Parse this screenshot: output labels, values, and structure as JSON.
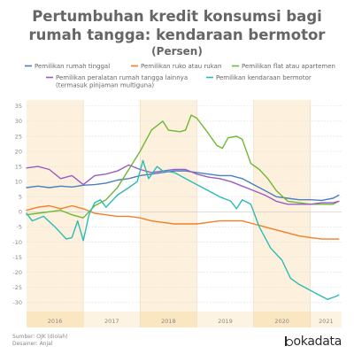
{
  "chart_data": {
    "type": "line",
    "title_lines": [
      "Pertumbuhan kredit konsumsi bagi",
      "rumah tangga: kendaraan bermotor"
    ],
    "subtitle": "(Persen)",
    "xlabel": "",
    "ylabel": "",
    "ylim": [
      -33,
      37
    ],
    "yticks": [
      -30,
      -25,
      -20,
      -15,
      -10,
      -5,
      0,
      5,
      10,
      15,
      20,
      25,
      30,
      35
    ],
    "xlim": [
      2015.5,
      2021.05
    ],
    "year_bands": [
      {
        "label": "2016",
        "start": 2015.5,
        "end": 2016.5
      },
      {
        "label": "2017",
        "start": 2016.5,
        "end": 2017.5
      },
      {
        "label": "2018",
        "start": 2017.5,
        "end": 2018.5
      },
      {
        "label": "2019",
        "start": 2018.5,
        "end": 2019.5
      },
      {
        "label": "2020",
        "start": 2019.5,
        "end": 2020.5
      },
      {
        "label": "2021",
        "start": 2020.5,
        "end": 2021.05
      }
    ],
    "grid": true,
    "legend_position": "top",
    "series": [
      {
        "name": "Pemilikan rumah tinggal",
        "color": "#4a7fc1",
        "points": [
          [
            2015.5,
            8
          ],
          [
            2015.7,
            8.5
          ],
          [
            2015.9,
            8
          ],
          [
            2016.1,
            8.5
          ],
          [
            2016.3,
            8.2
          ],
          [
            2016.5,
            8.8
          ],
          [
            2016.7,
            9
          ],
          [
            2016.9,
            9.5
          ],
          [
            2017.1,
            10.5
          ],
          [
            2017.3,
            11
          ],
          [
            2017.5,
            12
          ],
          [
            2017.7,
            12.5
          ],
          [
            2017.9,
            13
          ],
          [
            2018.1,
            13.5
          ],
          [
            2018.3,
            13.5
          ],
          [
            2018.5,
            13
          ],
          [
            2018.7,
            12.5
          ],
          [
            2018.9,
            12
          ],
          [
            2019.1,
            12
          ],
          [
            2019.3,
            11
          ],
          [
            2019.5,
            9
          ],
          [
            2019.7,
            7
          ],
          [
            2019.9,
            5
          ],
          [
            2020.1,
            4.5
          ],
          [
            2020.3,
            4
          ],
          [
            2020.5,
            4
          ],
          [
            2020.7,
            3.8
          ],
          [
            2020.9,
            4.5
          ],
          [
            2021.0,
            5.5
          ]
        ]
      },
      {
        "name": "Pemilikan ruko atau rukan",
        "color": "#f07f2a",
        "points": [
          [
            2015.5,
            0.5
          ],
          [
            2015.7,
            1.5
          ],
          [
            2015.9,
            2
          ],
          [
            2016.1,
            1
          ],
          [
            2016.3,
            2
          ],
          [
            2016.5,
            1
          ],
          [
            2016.7,
            -0.5
          ],
          [
            2016.9,
            -1
          ],
          [
            2017.1,
            -1.5
          ],
          [
            2017.3,
            -1.5
          ],
          [
            2017.5,
            -2
          ],
          [
            2017.7,
            -3
          ],
          [
            2017.9,
            -3.5
          ],
          [
            2018.1,
            -4
          ],
          [
            2018.3,
            -4
          ],
          [
            2018.5,
            -4
          ],
          [
            2018.7,
            -3.5
          ],
          [
            2018.9,
            -3
          ],
          [
            2019.1,
            -3
          ],
          [
            2019.3,
            -3
          ],
          [
            2019.5,
            -4
          ],
          [
            2019.7,
            -5
          ],
          [
            2019.9,
            -6
          ],
          [
            2020.1,
            -7
          ],
          [
            2020.3,
            -8
          ],
          [
            2020.5,
            -8.5
          ],
          [
            2020.7,
            -9
          ],
          [
            2020.9,
            -9
          ],
          [
            2021.0,
            -9
          ]
        ]
      },
      {
        "name": "Pemilikan flat atau apartemen",
        "color": "#6fb833",
        "points": [
          [
            2015.5,
            -1
          ],
          [
            2015.7,
            -0.5
          ],
          [
            2015.9,
            0
          ],
          [
            2016.1,
            0.5
          ],
          [
            2016.3,
            -1
          ],
          [
            2016.5,
            -2
          ],
          [
            2016.7,
            2
          ],
          [
            2016.9,
            4
          ],
          [
            2017.1,
            8
          ],
          [
            2017.3,
            14
          ],
          [
            2017.5,
            20
          ],
          [
            2017.7,
            27
          ],
          [
            2017.9,
            30
          ],
          [
            2018.0,
            27
          ],
          [
            2018.2,
            26.5
          ],
          [
            2018.3,
            27
          ],
          [
            2018.4,
            32
          ],
          [
            2018.5,
            31
          ],
          [
            2018.7,
            26
          ],
          [
            2018.85,
            22
          ],
          [
            2018.95,
            21
          ],
          [
            2019.05,
            24.5
          ],
          [
            2019.2,
            25
          ],
          [
            2019.3,
            24
          ],
          [
            2019.45,
            16
          ],
          [
            2019.6,
            14
          ],
          [
            2019.75,
            11
          ],
          [
            2019.9,
            7
          ],
          [
            2020.1,
            3.5
          ],
          [
            2020.3,
            3
          ],
          [
            2020.5,
            2.5
          ],
          [
            2020.7,
            2.5
          ],
          [
            2020.9,
            2.5
          ],
          [
            2021.0,
            3.5
          ]
        ]
      },
      {
        "name": "Pemilikan peralatan rumah tangga lainnya (termasuk pinjaman multiguna)",
        "legend_lines": [
          "Pemilikan peralatan rumah tangga lainnya",
          "(termasuk pinjaman multiguna)"
        ],
        "color": "#9a5cc0",
        "points": [
          [
            2015.5,
            14.5
          ],
          [
            2015.7,
            15
          ],
          [
            2015.9,
            14
          ],
          [
            2016.1,
            11
          ],
          [
            2016.3,
            12
          ],
          [
            2016.5,
            9
          ],
          [
            2016.7,
            12
          ],
          [
            2016.9,
            12.5
          ],
          [
            2017.1,
            13.5
          ],
          [
            2017.3,
            15.5
          ],
          [
            2017.5,
            14
          ],
          [
            2017.7,
            13
          ],
          [
            2017.9,
            13.5
          ],
          [
            2018.1,
            14
          ],
          [
            2018.3,
            14
          ],
          [
            2018.5,
            12.5
          ],
          [
            2018.7,
            11.5
          ],
          [
            2018.9,
            11
          ],
          [
            2019.1,
            10
          ],
          [
            2019.3,
            8.5
          ],
          [
            2019.5,
            7
          ],
          [
            2019.7,
            5.5
          ],
          [
            2019.9,
            3.5
          ],
          [
            2020.1,
            2.5
          ],
          [
            2020.3,
            2.5
          ],
          [
            2020.5,
            2.5
          ],
          [
            2020.7,
            3
          ],
          [
            2020.9,
            3
          ],
          [
            2021.0,
            3.5
          ]
        ]
      },
      {
        "name": "Pemilikan kendaraan bermotor",
        "color": "#2bbcb5",
        "points": [
          [
            2015.5,
            -0.5
          ],
          [
            2015.6,
            -3
          ],
          [
            2015.8,
            -1.5
          ],
          [
            2016.0,
            -5
          ],
          [
            2016.1,
            -7
          ],
          [
            2016.2,
            -9
          ],
          [
            2016.3,
            -8.5
          ],
          [
            2016.4,
            -3
          ],
          [
            2016.5,
            -9.5
          ],
          [
            2016.6,
            -1
          ],
          [
            2016.7,
            3
          ],
          [
            2016.8,
            4
          ],
          [
            2016.9,
            1.5
          ],
          [
            2017.1,
            5.5
          ],
          [
            2017.3,
            8
          ],
          [
            2017.45,
            10
          ],
          [
            2017.55,
            17
          ],
          [
            2017.65,
            11
          ],
          [
            2017.8,
            15
          ],
          [
            2017.9,
            13.5
          ],
          [
            2018.1,
            13
          ],
          [
            2018.3,
            11
          ],
          [
            2018.5,
            9
          ],
          [
            2018.7,
            7
          ],
          [
            2018.9,
            5
          ],
          [
            2019.1,
            3.5
          ],
          [
            2019.2,
            1
          ],
          [
            2019.3,
            4
          ],
          [
            2019.45,
            2.5
          ],
          [
            2019.6,
            -5
          ],
          [
            2019.8,
            -12
          ],
          [
            2020.0,
            -16
          ],
          [
            2020.15,
            -22
          ],
          [
            2020.3,
            -24
          ],
          [
            2020.5,
            -26
          ],
          [
            2020.65,
            -27.5
          ],
          [
            2020.8,
            -29
          ],
          [
            2020.95,
            -28
          ],
          [
            2021.0,
            -27.5
          ]
        ]
      }
    ]
  },
  "footer": {
    "source": "Sumber: OJK (diolah)",
    "designer": "Desainer: Anjal",
    "brand": "lokadata",
    "brand_letter": "l"
  }
}
